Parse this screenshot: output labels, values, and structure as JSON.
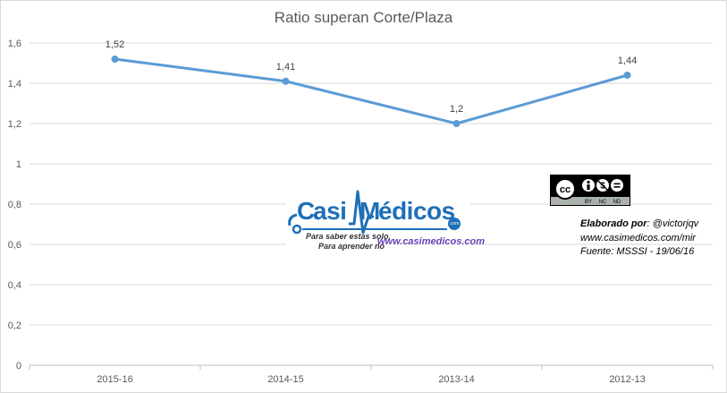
{
  "chart_data": {
    "type": "line",
    "title": "Ratio superan Corte/Plaza",
    "categories": [
      "2015-16",
      "2014-15",
      "2013-14",
      "2012-13"
    ],
    "values": [
      1.52,
      1.41,
      1.2,
      1.44
    ],
    "data_labels": [
      "1,52",
      "1,41",
      "1,2",
      "1,44"
    ],
    "y_ticks": [
      "0",
      "0,2",
      "0,4",
      "0,6",
      "0,8",
      "1",
      "1,2",
      "1,4",
      "1,6"
    ],
    "ylim": [
      0,
      1.6
    ],
    "grid": true,
    "legend": "none",
    "series_color": "#5b9bd5"
  },
  "watermark": {
    "logo_c": "C",
    "logo_asi": "asi",
    "logo_m": "M",
    "logo_edicos": "édicos",
    "logo_com": ".com",
    "tagline_1": "Para saber estas solo.",
    "tagline_2": "Para aprender no",
    "url": "www.casimedicos.com"
  },
  "license": {
    "badge_icon": "cc-by-nc-nd-icon",
    "badge_text_by": "BY",
    "badge_text_nc": "NC",
    "badge_text_nd": "ND"
  },
  "credits": {
    "line1_label": "Elaborado por",
    "line1_value": ": @victorjqv",
    "line2": "www.casimedicos.com/mir",
    "line3": "Fuente: MSSSI  - 19/06/16"
  }
}
